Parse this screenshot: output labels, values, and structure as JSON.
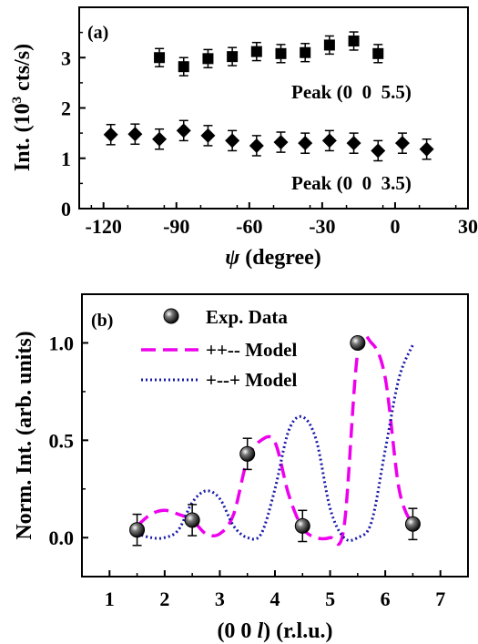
{
  "chart_data": [
    {
      "type": "scatter",
      "panel_label": "(a)",
      "xlabel": "ψ (degree)",
      "xlabel_symbol": "ψ",
      "xlabel_rest": " (degree)",
      "ylabel_pre": "Int. (10",
      "ylabel_sup": "3",
      "ylabel_post": " cts/s)",
      "xlim": [
        -130,
        30
      ],
      "ylim": [
        0,
        4
      ],
      "xticks": [
        -120,
        -90,
        -60,
        -30,
        0,
        30
      ],
      "xtick_labels": [
        "-120",
        "-90",
        "-60",
        "-30",
        "0",
        "30"
      ],
      "yticks": [
        0,
        1,
        2,
        3
      ],
      "ytick_labels": [
        "0",
        "1",
        "2",
        "3"
      ],
      "series": [
        {
          "name": "Peak (0  0  5.5)",
          "marker": "square",
          "x": [
            -97,
            -87,
            -77,
            -67,
            -57,
            -47,
            -37,
            -27,
            -17,
            -7
          ],
          "y": [
            3.0,
            2.82,
            2.98,
            3.02,
            3.12,
            3.08,
            3.1,
            3.25,
            3.33,
            3.08
          ],
          "err": [
            0.18,
            0.18,
            0.18,
            0.18,
            0.18,
            0.18,
            0.18,
            0.18,
            0.18,
            0.18
          ]
        },
        {
          "name": "Peak (0  0  3.5)",
          "marker": "diamond",
          "x": [
            -117,
            -107,
            -97,
            -87,
            -77,
            -67,
            -57,
            -47,
            -37,
            -27,
            -17,
            -7,
            3,
            13
          ],
          "y": [
            1.47,
            1.48,
            1.38,
            1.55,
            1.45,
            1.35,
            1.25,
            1.32,
            1.3,
            1.35,
            1.3,
            1.15,
            1.3,
            1.18
          ],
          "err": [
            0.2,
            0.2,
            0.2,
            0.2,
            0.2,
            0.2,
            0.2,
            0.2,
            0.2,
            0.2,
            0.2,
            0.2,
            0.2,
            0.2
          ]
        }
      ]
    },
    {
      "type": "scatter",
      "panel_label": "(b)",
      "xlabel_pre": "(0 0 ",
      "xlabel_l": "l",
      "xlabel_post": ") (r.l.u.)",
      "ylabel": "Norm. Int. (arb. units)",
      "xlim": [
        0.5,
        7.5
      ],
      "ylim": [
        -0.2,
        1.25
      ],
      "xticks": [
        1,
        2,
        3,
        4,
        5,
        6,
        7
      ],
      "xtick_labels": [
        "1",
        "2",
        "3",
        "4",
        "5",
        "6",
        "7"
      ],
      "yticks": [
        0.0,
        0.5,
        1.0
      ],
      "ytick_labels": [
        "0.0",
        "0.5",
        "1.0"
      ],
      "legend_position": "top-left",
      "legend": [
        "Exp. Data",
        "++-- Model",
        "+--+ Model"
      ],
      "points": {
        "name": "Exp. Data",
        "x": [
          1.5,
          2.5,
          3.5,
          4.5,
          5.5,
          6.5
        ],
        "y": [
          0.04,
          0.09,
          0.43,
          0.06,
          1.0,
          0.07
        ],
        "err": [
          0.08,
          0.08,
          0.08,
          0.08,
          0.0,
          0.08
        ]
      },
      "models": [
        {
          "name": "++-- Model",
          "style": "dashed",
          "color": "#ee00ee",
          "x": [
            1.5,
            1.75,
            2.0,
            2.25,
            2.5,
            2.75,
            3.0,
            3.25,
            3.5,
            3.75,
            4.0,
            4.25,
            4.5,
            4.75,
            5.0,
            5.25,
            5.5,
            5.75,
            6.0,
            6.25,
            6.5
          ],
          "y": [
            0.06,
            0.12,
            0.14,
            0.12,
            0.09,
            0.02,
            0.02,
            0.12,
            0.4,
            0.5,
            0.49,
            0.22,
            0.05,
            0.0,
            0.0,
            0.05,
            0.95,
            1.0,
            0.82,
            0.25,
            0.06
          ]
        },
        {
          "name": "+--+ Model",
          "style": "dotted",
          "color": "#1a1aa8",
          "x": [
            1.5,
            1.75,
            2.0,
            2.25,
            2.5,
            2.75,
            3.0,
            3.25,
            3.5,
            3.75,
            4.0,
            4.25,
            4.5,
            4.75,
            5.0,
            5.25,
            5.5,
            5.75,
            6.0,
            6.25,
            6.5
          ],
          "y": [
            0.02,
            0.0,
            0.0,
            0.04,
            0.18,
            0.24,
            0.2,
            0.06,
            0.0,
            0.02,
            0.25,
            0.55,
            0.62,
            0.5,
            0.15,
            0.0,
            0.0,
            0.08,
            0.45,
            0.82,
            0.99
          ]
        }
      ]
    }
  ]
}
